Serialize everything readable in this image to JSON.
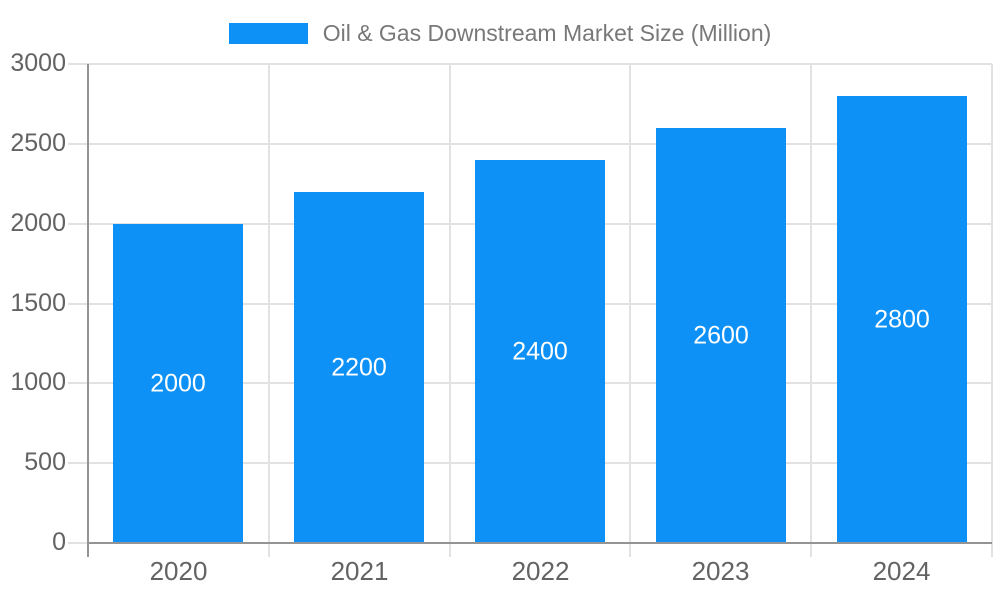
{
  "legend": {
    "label": "Oil & Gas Downstream Market Size (Million)"
  },
  "chart_data": {
    "type": "bar",
    "title": "Oil & Gas Downstream Market Size (Million)",
    "series": [
      {
        "name": "Oil & Gas Downstream Market Size (Million)",
        "values": [
          2000,
          2200,
          2400,
          2600,
          2800
        ]
      }
    ],
    "categories": [
      "2020",
      "2021",
      "2022",
      "2023",
      "2024"
    ],
    "bar_labels": [
      "2000",
      "2200",
      "2400",
      "2600",
      "2800"
    ],
    "xlabel": "",
    "ylabel": "",
    "ylim": [
      0,
      3000
    ],
    "yticks": [
      0,
      500,
      1000,
      1500,
      2000,
      2500,
      3000
    ],
    "ytick_labels": [
      "0",
      "500",
      "1000",
      "1500",
      "2000",
      "2500",
      "3000"
    ],
    "grid": true,
    "legend_position": "top",
    "colors": {
      "bar": "#0e91f6",
      "bar_label_text": "#ffffff",
      "axis_text": "#636363",
      "title_text": "#787878",
      "grid_line": "#e2e2e2",
      "axis_line": "#949494",
      "background": "#ffffff"
    }
  }
}
